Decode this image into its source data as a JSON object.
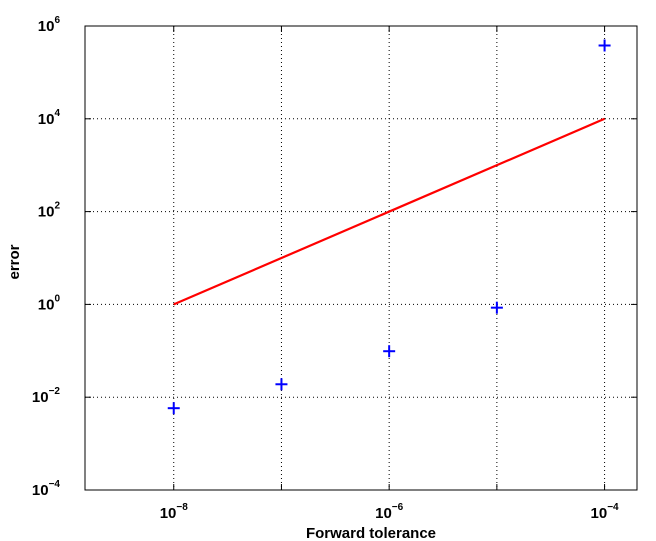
{
  "chart_data": {
    "type": "scatter",
    "title": "",
    "xlabel": "Forward tolerance",
    "ylabel": "error",
    "x_scale": "log",
    "y_scale": "log",
    "xlim": [
      1.5e-09,
      0.0002
    ],
    "ylim": [
      0.0001,
      1000000.0
    ],
    "grid": true,
    "x_ticks": [
      {
        "value": 1e-08,
        "base": "10",
        "exp": "−8"
      },
      {
        "value": 1e-06,
        "base": "10",
        "exp": "−6"
      },
      {
        "value": 0.0001,
        "base": "10",
        "exp": "−4"
      }
    ],
    "x_minor_grid": [
      1e-07,
      1e-05
    ],
    "y_ticks": [
      {
        "value": 0.0001,
        "base": "10",
        "exp": "−4"
      },
      {
        "value": 0.01,
        "base": "10",
        "exp": "−2"
      },
      {
        "value": 1,
        "base": "10",
        "exp": "0"
      },
      {
        "value": 100,
        "base": "10",
        "exp": "2"
      },
      {
        "value": 10000,
        "base": "10",
        "exp": "4"
      },
      {
        "value": 1000000,
        "base": "10",
        "exp": "6"
      }
    ],
    "series": [
      {
        "type": "scatter",
        "marker": "+",
        "color": "#0000ff",
        "x": [
          1e-08,
          1e-07,
          1e-06,
          1e-05,
          0.0001
        ],
        "y": [
          0.0058,
          0.019,
          0.098,
          0.85,
          380000
        ]
      },
      {
        "type": "line",
        "color": "#ff0000",
        "x": [
          1e-08,
          0.0001
        ],
        "y": [
          1,
          10000
        ]
      }
    ]
  }
}
